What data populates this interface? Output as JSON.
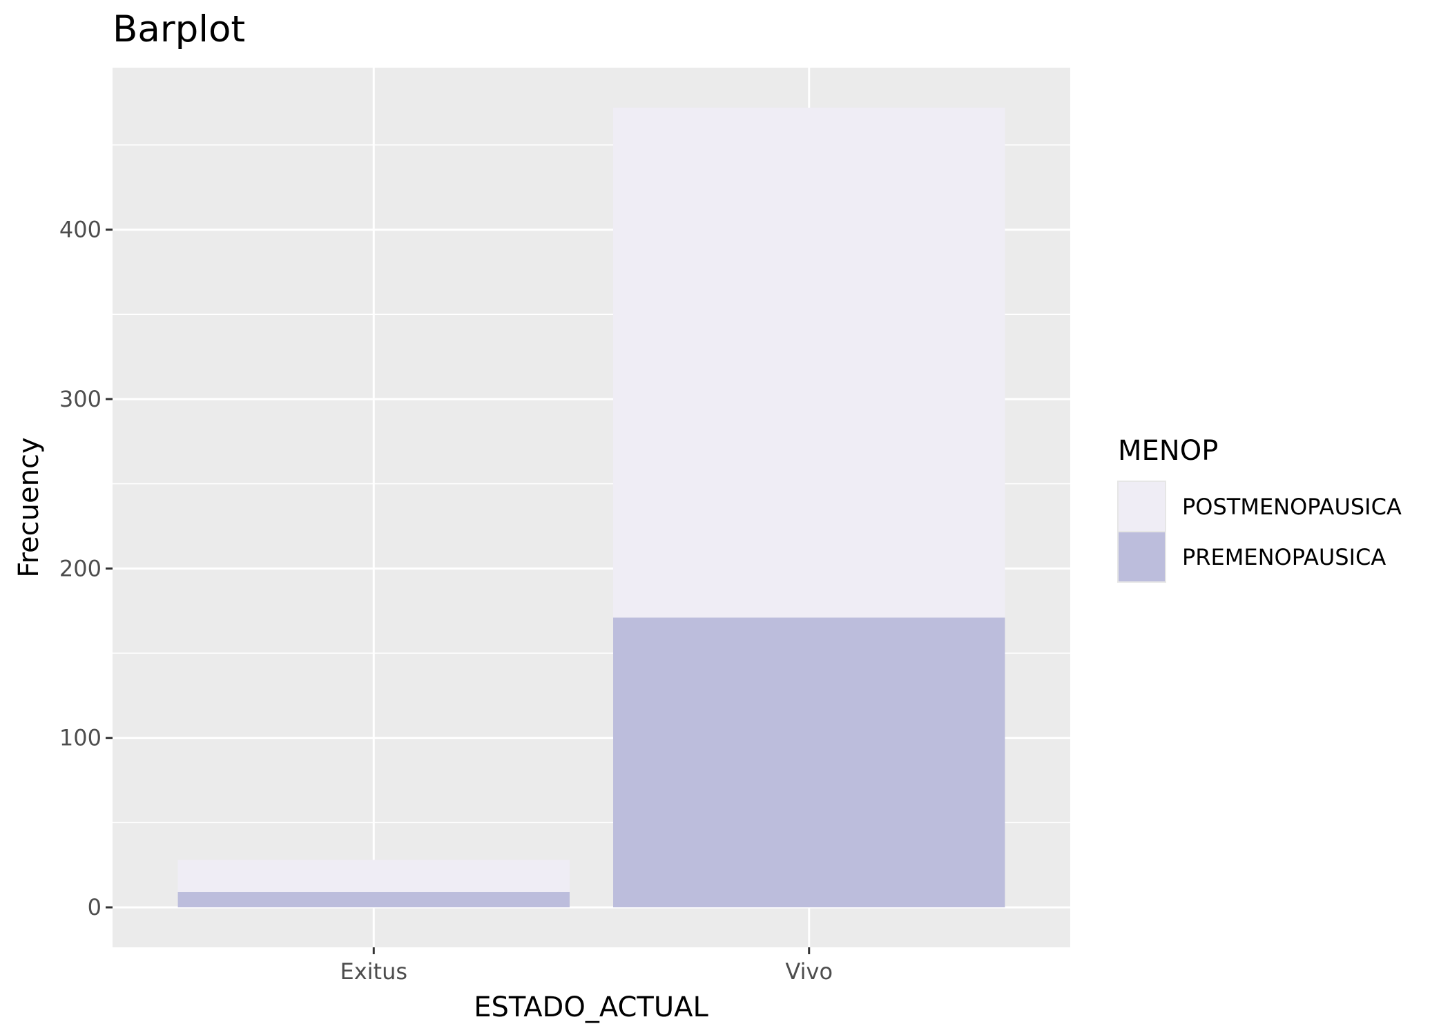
{
  "chart_data": {
    "type": "bar",
    "stacked": true,
    "title": "Barplot",
    "xlabel": "ESTADO_ACTUAL",
    "ylabel": "Frecuency",
    "categories": [
      "Exitus",
      "Vivo"
    ],
    "series": [
      {
        "name": "PREMENOPAUSICA",
        "values": [
          9,
          171
        ],
        "color": "#bcbddc"
      },
      {
        "name": "POSTMENOPAUSICA",
        "values": [
          19,
          301
        ],
        "color": "#efedf5"
      }
    ],
    "ylim": [
      -23.6,
      495.6
    ],
    "yticks": [
      0,
      100,
      200,
      300,
      400
    ],
    "yticks_minor": [
      50,
      150,
      250,
      350,
      450
    ],
    "legend": {
      "title": "MENOP",
      "position": "right",
      "entries": [
        "POSTMENOPAUSICA",
        "PREMENOPAUSICA"
      ]
    },
    "grid": true,
    "panel_background": "#ebebeb",
    "grid_color": "#ffffff"
  }
}
